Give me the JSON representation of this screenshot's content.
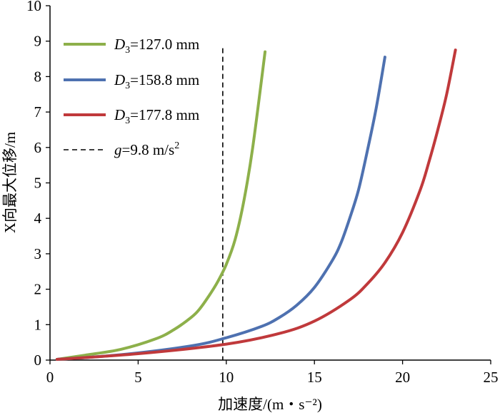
{
  "chart_data": {
    "type": "line",
    "title": "",
    "xlabel": "加速度/(m・s⁻²)",
    "ylabel": "X向最大位移/m",
    "xlim": [
      0,
      25
    ],
    "ylim": [
      0,
      10
    ],
    "xticks": [
      0,
      5,
      10,
      15,
      20,
      25
    ],
    "yticks": [
      0,
      1,
      2,
      3,
      4,
      5,
      6,
      7,
      8,
      9,
      10
    ],
    "legend_position": "top-left",
    "series": [
      {
        "name": "D3=127.0 mm",
        "label_main": "D",
        "label_sub": "3",
        "label_rest": "=127.0 mm",
        "color": "#8db04a",
        "x": [
          0.4,
          2,
          4,
          6,
          7,
          8,
          8.5,
          9,
          9.5,
          10,
          10.5,
          11,
          11.5,
          12.2
        ],
        "y": [
          0.02,
          0.14,
          0.3,
          0.6,
          0.85,
          1.2,
          1.45,
          1.8,
          2.2,
          2.7,
          3.4,
          4.5,
          6.0,
          8.7
        ]
      },
      {
        "name": "D3=158.8 mm",
        "label_main": "D",
        "label_sub": "3",
        "label_rest": "=158.8 mm",
        "color": "#4e71b0",
        "x": [
          0.4,
          4,
          8,
          10,
          12,
          13,
          14,
          15,
          16,
          16.5,
          17,
          17.5,
          18,
          18.5,
          19
        ],
        "y": [
          0.02,
          0.15,
          0.4,
          0.63,
          0.95,
          1.2,
          1.55,
          2.05,
          2.8,
          3.3,
          4.0,
          4.8,
          5.9,
          7.1,
          8.55
        ]
      },
      {
        "name": "D3=177.8 mm",
        "label_main": "D",
        "label_sub": "3",
        "label_rest": "=177.8 mm",
        "color": "#c0393b",
        "x": [
          0.4,
          5,
          10,
          13,
          15,
          17,
          18,
          19,
          20,
          21,
          21.5,
          22,
          22.5,
          23
        ],
        "y": [
          0.02,
          0.18,
          0.45,
          0.75,
          1.1,
          1.7,
          2.15,
          2.75,
          3.6,
          4.8,
          5.6,
          6.5,
          7.5,
          8.75
        ]
      }
    ],
    "reference_line": {
      "name": "g=9.8 m/s2",
      "label_main": "g",
      "label_rest": "=9.8 m/s",
      "label_sup": "2",
      "x": 9.8,
      "y_top": 8.8,
      "style": "dashed",
      "color": "#000000"
    }
  }
}
